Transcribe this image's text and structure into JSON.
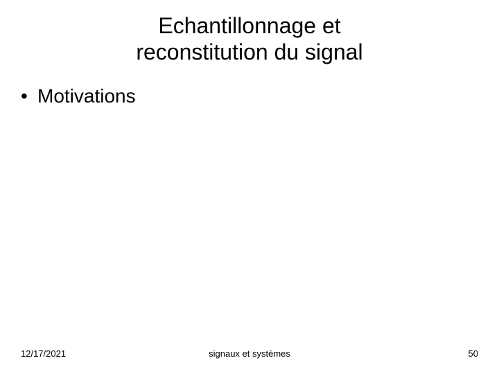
{
  "slide": {
    "title_line1": "Echantillonnage et",
    "title_line2": "reconstitution du signal",
    "bullets": [
      "Motivations"
    ]
  },
  "footer": {
    "date": "12/17/2021",
    "subject": "signaux et systèmes",
    "page_number": "50"
  },
  "styling": {
    "background_color": "#ffffff",
    "text_color": "#000000",
    "title_fontsize": 32,
    "bullet_fontsize": 28,
    "footer_fontsize": 13,
    "font_family": "Arial"
  }
}
